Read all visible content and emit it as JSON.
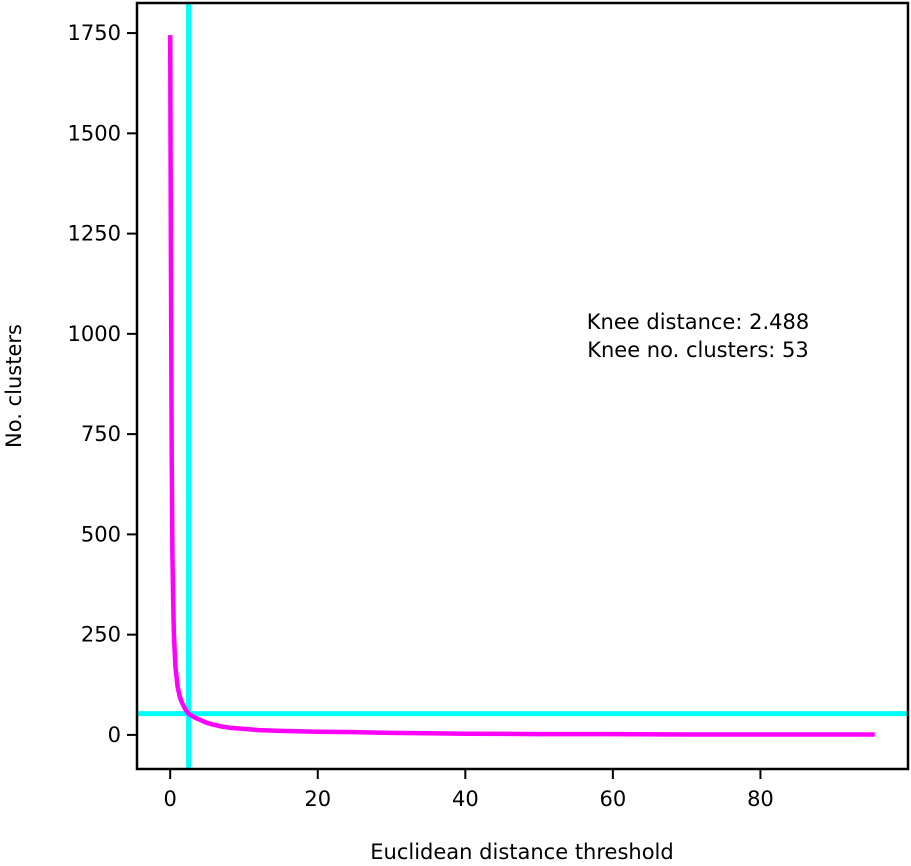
{
  "chart_data": {
    "type": "line",
    "title": "",
    "xlabel": "Euclidean distance threshold",
    "ylabel": "No. clusters",
    "xlim": [
      -4.5,
      100
    ],
    "ylim": [
      -85,
      1825
    ],
    "xticks": [
      0,
      20,
      40,
      60,
      80
    ],
    "yticks": [
      0,
      250,
      500,
      750,
      1000,
      1250,
      1500,
      1750
    ],
    "grid": false,
    "legend": "none",
    "series": [
      {
        "color": "#ff00ff",
        "x": [
          0.0,
          0.1,
          0.2,
          0.3,
          0.4,
          0.5,
          0.7,
          1.0,
          1.3,
          1.6,
          2.0,
          2.488,
          3.0,
          3.5,
          4.0,
          5.0,
          6.0,
          7.0,
          8.0,
          10.0,
          12.0,
          15.0,
          20.0,
          25.0,
          30.0,
          35.0,
          40.0,
          50.0,
          60.0,
          70.0,
          80.0,
          90.0,
          95.5
        ],
        "y": [
          1745,
          1200,
          700,
          450,
          330,
          250,
          170,
          120,
          95,
          80,
          65,
          53,
          47,
          42,
          38,
          30,
          25,
          21,
          18,
          15,
          12,
          10,
          8,
          7,
          5,
          4,
          3,
          2,
          2,
          1,
          1,
          1,
          1
        ]
      }
    ],
    "reference_lines": {
      "color": "#00ffff",
      "vertical_x": 2.488,
      "horizontal_y": 53
    },
    "annotation": {
      "line1": "Knee distance: 2.488",
      "line2": "Knee no. clusters: 53"
    }
  }
}
